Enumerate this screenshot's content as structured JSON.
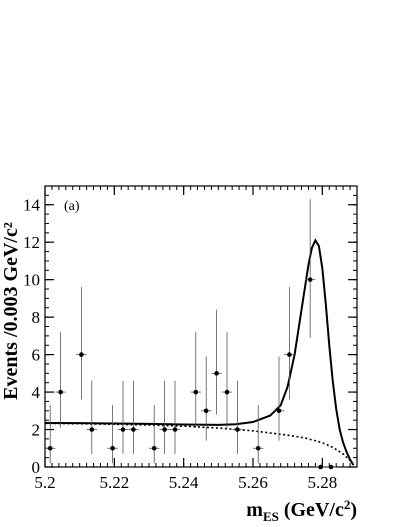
{
  "chart_data": {
    "type": "scatter",
    "panel_label": "(a)",
    "xlabel_main": "m",
    "xlabel_sub": "ES",
    "xlabel_unit_prefix": " (GeV/c",
    "xlabel_unit_power": "2",
    "xlabel_unit_suffix": ")",
    "ylabel": "Events /0.003 GeV/c²",
    "xlim": [
      5.2,
      5.29
    ],
    "ylim": [
      0,
      15
    ],
    "x_ticks": [
      5.2,
      5.22,
      5.24,
      5.26,
      5.28
    ],
    "x_tick_labels": [
      "5.2",
      "5.22",
      "5.24",
      "5.26",
      "5.28"
    ],
    "y_ticks": [
      0,
      2,
      4,
      6,
      8,
      10,
      12,
      14
    ],
    "y_tick_labels": [
      "0",
      "2",
      "4",
      "6",
      "8",
      "10",
      "12",
      "14"
    ],
    "grid": false,
    "series": [
      {
        "kind": "points-with-errors",
        "x": [
          5.2015,
          5.2045,
          5.2105,
          5.2135,
          5.2195,
          5.2225,
          5.2255,
          5.2315,
          5.2345,
          5.2375,
          5.2435,
          5.2465,
          5.2495,
          5.2525,
          5.2555,
          5.2615,
          5.2675,
          5.2705,
          5.2765,
          5.2795,
          5.2825
        ],
        "y": [
          1,
          4,
          6,
          2,
          1,
          2,
          2,
          1,
          2,
          2,
          4,
          3,
          5,
          4,
          2,
          1,
          3,
          6,
          10,
          0,
          0
        ],
        "yerr_low": [
          0.8,
          1.9,
          2.4,
          1.3,
          0.8,
          1.3,
          1.3,
          0.8,
          1.3,
          1.3,
          1.9,
          1.6,
          2.2,
          1.9,
          1.3,
          0.8,
          1.6,
          2.4,
          3.1,
          0,
          0
        ],
        "yerr_high": [
          2.3,
          3.2,
          3.6,
          2.6,
          2.3,
          2.6,
          2.6,
          2.3,
          2.6,
          2.6,
          3.2,
          2.9,
          3.4,
          3.2,
          2.6,
          2.3,
          2.9,
          3.6,
          4.3,
          0,
          0
        ]
      },
      {
        "kind": "total-fit",
        "line_style": "solid",
        "x": [
          5.2,
          5.21,
          5.22,
          5.23,
          5.24,
          5.25,
          5.255,
          5.26,
          5.265,
          5.268,
          5.27,
          5.272,
          5.274,
          5.276,
          5.277,
          5.278,
          5.279,
          5.28,
          5.281,
          5.282,
          5.283,
          5.284,
          5.285,
          5.286,
          5.287,
          5.288,
          5.289
        ],
        "y": [
          2.35,
          2.34,
          2.32,
          2.3,
          2.27,
          2.25,
          2.28,
          2.4,
          2.75,
          3.3,
          4.3,
          6.0,
          8.4,
          10.8,
          11.7,
          12.1,
          11.8,
          10.6,
          8.7,
          6.5,
          4.6,
          3.1,
          2.0,
          1.3,
          0.8,
          0.4,
          0.1
        ]
      },
      {
        "kind": "background-fit",
        "line_style": "dotted",
        "x": [
          5.2,
          5.21,
          5.22,
          5.23,
          5.24,
          5.25,
          5.26,
          5.27,
          5.275,
          5.28,
          5.283,
          5.286,
          5.288,
          5.289
        ],
        "y": [
          2.33,
          2.31,
          2.28,
          2.24,
          2.18,
          2.08,
          1.93,
          1.7,
          1.55,
          1.3,
          1.05,
          0.7,
          0.35,
          0.1
        ]
      }
    ],
    "colors": {
      "axis": "#000000",
      "points": "#000000",
      "fit": "#000000"
    }
  }
}
